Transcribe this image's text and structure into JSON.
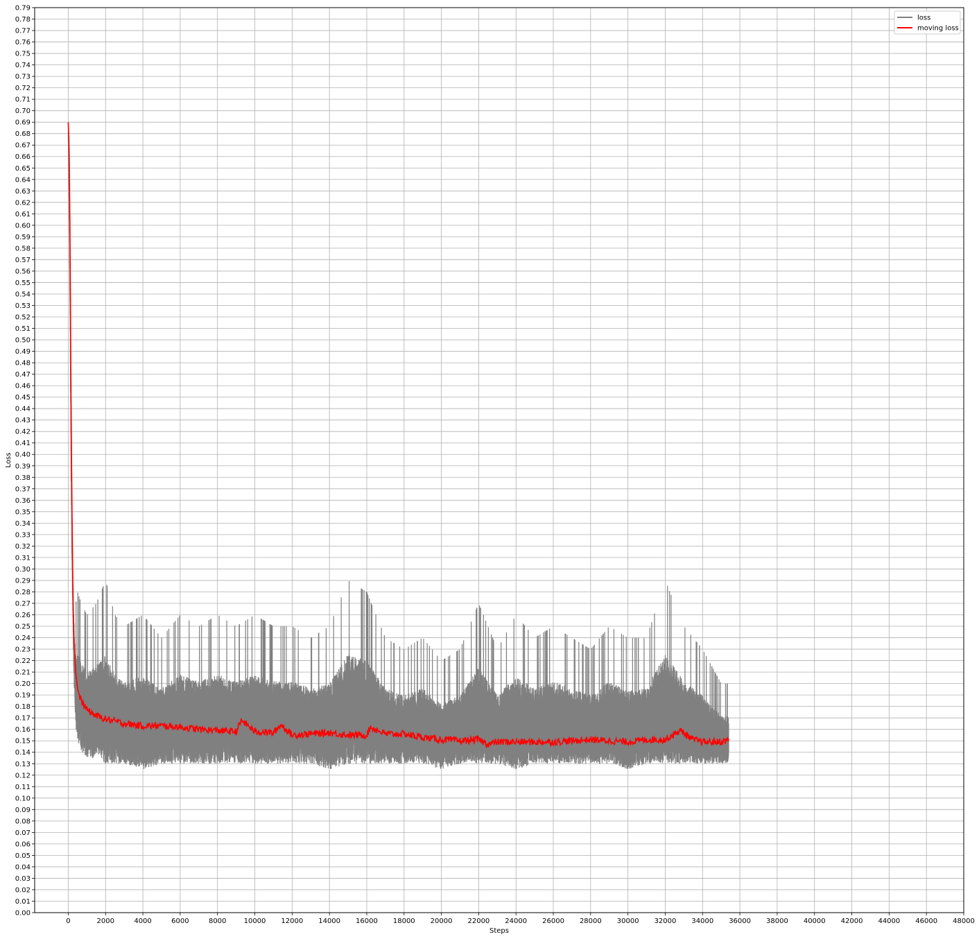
{
  "chart_data": {
    "type": "line",
    "title": "",
    "xlabel": "Steps",
    "ylabel": "Loss",
    "xlim": [
      -1800,
      48000
    ],
    "ylim": [
      0.0,
      0.79
    ],
    "x_ticks": [
      0,
      2000,
      4000,
      6000,
      8000,
      10000,
      12000,
      14000,
      16000,
      18000,
      20000,
      22000,
      24000,
      26000,
      28000,
      30000,
      32000,
      34000,
      36000,
      38000,
      40000,
      42000,
      44000,
      46000,
      48000
    ],
    "x_tick_labels": [
      "0",
      "2000",
      "4000",
      "6000",
      "8000",
      "10000",
      "12000",
      "14000",
      "16000",
      "18000",
      "20000",
      "22000",
      "24000",
      "26000",
      "28000",
      "30000",
      "32000",
      "34000",
      "36000",
      "38000",
      "40000",
      "42000",
      "44000",
      "46000",
      "48000"
    ],
    "y_ticks": [
      0.0,
      0.01,
      0.02,
      0.03,
      0.04,
      0.05,
      0.06,
      0.07,
      0.08,
      0.09,
      0.1,
      0.11,
      0.12,
      0.13,
      0.14,
      0.15,
      0.16,
      0.17,
      0.18,
      0.19,
      0.2,
      0.21,
      0.22,
      0.23,
      0.24,
      0.25,
      0.26,
      0.27,
      0.28,
      0.29,
      0.3,
      0.31,
      0.32,
      0.33,
      0.34,
      0.35,
      0.36,
      0.37,
      0.38,
      0.39,
      0.4,
      0.41,
      0.42,
      0.43,
      0.44,
      0.45,
      0.46,
      0.47,
      0.48,
      0.49,
      0.5,
      0.51,
      0.52,
      0.53,
      0.54,
      0.55,
      0.56,
      0.57,
      0.58,
      0.59,
      0.6,
      0.61,
      0.62,
      0.63,
      0.64,
      0.65,
      0.66,
      0.67,
      0.68,
      0.69,
      0.7,
      0.71,
      0.72,
      0.73,
      0.74,
      0.75,
      0.76,
      0.77,
      0.78,
      0.79
    ],
    "y_tick_labels": [
      "0.00",
      "0.01",
      "0.02",
      "0.03",
      "0.04",
      "0.05",
      "0.06",
      "0.07",
      "0.08",
      "0.09",
      "0.10",
      "0.11",
      "0.12",
      "0.13",
      "0.14",
      "0.15",
      "0.16",
      "0.17",
      "0.18",
      "0.19",
      "0.20",
      "0.21",
      "0.22",
      "0.23",
      "0.24",
      "0.25",
      "0.26",
      "0.27",
      "0.28",
      "0.29",
      "0.30",
      "0.31",
      "0.32",
      "0.33",
      "0.34",
      "0.35",
      "0.36",
      "0.37",
      "0.38",
      "0.39",
      "0.40",
      "0.41",
      "0.42",
      "0.43",
      "0.44",
      "0.45",
      "0.46",
      "0.47",
      "0.48",
      "0.49",
      "0.50",
      "0.51",
      "0.52",
      "0.53",
      "0.54",
      "0.55",
      "0.56",
      "0.57",
      "0.58",
      "0.59",
      "0.60",
      "0.61",
      "0.62",
      "0.63",
      "0.64",
      "0.65",
      "0.66",
      "0.67",
      "0.68",
      "0.69",
      "0.70",
      "0.71",
      "0.72",
      "0.73",
      "0.74",
      "0.75",
      "0.76",
      "0.77",
      "0.78",
      "0.79"
    ],
    "grid": true,
    "legend_position": "top-right",
    "series": [
      {
        "name": "loss",
        "color": "#808080",
        "style": "noisy band (min/max envelope approximated)",
        "x": [
          0,
          50,
          100,
          150,
          200,
          250,
          300,
          350,
          400,
          500,
          700,
          1000,
          1500,
          2000,
          2500,
          3000,
          4000,
          5000,
          6000,
          7000,
          8000,
          9000,
          10000,
          11000,
          12000,
          13000,
          14000,
          15000,
          16000,
          17000,
          18000,
          19000,
          20000,
          21000,
          22000,
          23000,
          24000,
          25000,
          26000,
          27000,
          28000,
          29000,
          30000,
          31000,
          32000,
          33000,
          34000,
          35000,
          35400
        ],
        "upper": [
          0.705,
          0.69,
          0.62,
          0.5,
          0.4,
          0.33,
          0.3,
          0.28,
          0.27,
          0.28,
          0.27,
          0.26,
          0.27,
          0.29,
          0.26,
          0.25,
          0.26,
          0.24,
          0.26,
          0.25,
          0.26,
          0.25,
          0.26,
          0.25,
          0.25,
          0.24,
          0.25,
          0.29,
          0.28,
          0.24,
          0.23,
          0.24,
          0.22,
          0.23,
          0.27,
          0.23,
          0.26,
          0.24,
          0.25,
          0.24,
          0.23,
          0.25,
          0.24,
          0.24,
          0.29,
          0.25,
          0.23,
          0.2,
          0.2
        ],
        "lower": [
          0.67,
          0.6,
          0.5,
          0.38,
          0.3,
          0.25,
          0.2,
          0.18,
          0.16,
          0.15,
          0.14,
          0.135,
          0.135,
          0.13,
          0.13,
          0.13,
          0.125,
          0.13,
          0.13,
          0.13,
          0.13,
          0.13,
          0.13,
          0.13,
          0.13,
          0.13,
          0.125,
          0.13,
          0.13,
          0.13,
          0.13,
          0.13,
          0.125,
          0.13,
          0.13,
          0.13,
          0.125,
          0.13,
          0.13,
          0.13,
          0.13,
          0.13,
          0.125,
          0.13,
          0.13,
          0.13,
          0.13,
          0.13,
          0.13
        ]
      },
      {
        "name": "moving loss",
        "color": "#ff0000",
        "x": [
          0,
          50,
          100,
          150,
          200,
          250,
          300,
          400,
          500,
          700,
          1000,
          1500,
          2000,
          2500,
          3000,
          4000,
          5000,
          6000,
          7000,
          8000,
          9000,
          9300,
          10000,
          11000,
          11400,
          12000,
          13000,
          14000,
          15000,
          16000,
          16200,
          17000,
          18000,
          19000,
          20000,
          21000,
          22000,
          22500,
          23000,
          24000,
          25000,
          26000,
          27000,
          28000,
          29000,
          30000,
          31000,
          32000,
          32800,
          33500,
          34000,
          35000,
          35400
        ],
        "y": [
          0.69,
          0.67,
          0.58,
          0.45,
          0.35,
          0.28,
          0.24,
          0.21,
          0.195,
          0.185,
          0.177,
          0.172,
          0.169,
          0.167,
          0.165,
          0.163,
          0.163,
          0.162,
          0.16,
          0.159,
          0.158,
          0.168,
          0.158,
          0.157,
          0.164,
          0.155,
          0.156,
          0.157,
          0.155,
          0.155,
          0.162,
          0.156,
          0.156,
          0.153,
          0.151,
          0.15,
          0.151,
          0.147,
          0.149,
          0.149,
          0.149,
          0.149,
          0.15,
          0.151,
          0.15,
          0.149,
          0.151,
          0.151,
          0.159,
          0.151,
          0.149,
          0.149,
          0.151
        ]
      }
    ]
  }
}
